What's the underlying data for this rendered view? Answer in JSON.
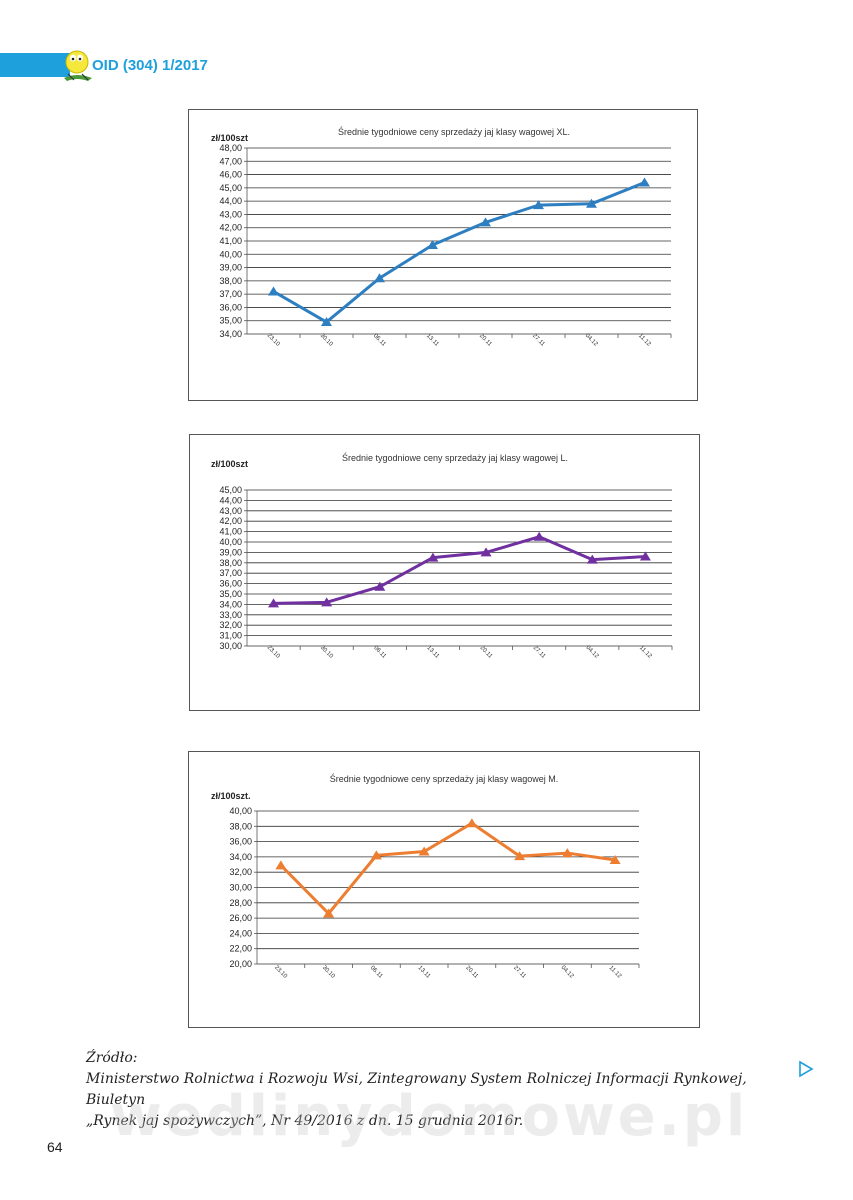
{
  "header": {
    "journal": "OID (304) 1/2017"
  },
  "chart_data": [
    {
      "type": "line",
      "title": "Średnie tygodniowe ceny sprzedaży jaj klasy wagowej XL.",
      "ylabel": "zł/100szt",
      "categories": [
        "23.10",
        "30.10",
        "06.11",
        "13.11",
        "20.11",
        "27.11",
        "04.12",
        "11.12"
      ],
      "values": [
        37.2,
        34.9,
        38.2,
        40.7,
        42.4,
        43.7,
        43.8,
        45.4
      ],
      "ylim": [
        34,
        48
      ],
      "ystep": 1,
      "color": "#2e7fc1",
      "grid": true,
      "legend": "none"
    },
    {
      "type": "line",
      "title": "Średnie tygodniowe ceny sprzedaży jaj klasy wagowej L.",
      "ylabel": "zł/100szt",
      "categories": [
        "23.10",
        "30.10",
        "06.11",
        "13.11",
        "20.11",
        "27.11",
        "04.12",
        "11.12"
      ],
      "values": [
        34.1,
        34.2,
        35.7,
        38.5,
        39.0,
        40.5,
        38.3,
        38.6
      ],
      "ylim": [
        30,
        45
      ],
      "ystep": 1,
      "color": "#7030a0",
      "grid": true,
      "legend": "none"
    },
    {
      "type": "line",
      "title": "Średnie tygodniowe ceny sprzedaży jaj klasy wagowej M.",
      "ylabel": "zł/100szt.",
      "categories": [
        "23.10",
        "30.10",
        "06.11",
        "13.11",
        "20.11",
        "27.11",
        "04.12",
        "11.12"
      ],
      "values": [
        32.9,
        26.6,
        34.2,
        34.7,
        38.4,
        34.1,
        34.5,
        33.6
      ],
      "ylim": [
        20,
        40
      ],
      "ystep": 2,
      "color": "#ed7d31",
      "grid": true,
      "legend": "none"
    }
  ],
  "source": {
    "label": "Źródło:",
    "line1": "Ministerstwo Rolnictwa i Rozwoju Wsi, Zintegrowany System Rolniczej Informacji Rynkowej, Biuletyn",
    "line2": "„Rynek jaj spożywczych”, Nr 49/2016 z dn. 15 grudnia 2016r."
  },
  "page_number": "64",
  "watermark": "wedlinydomowe.pl",
  "icons": {
    "logo": "chick-logo-icon",
    "next": "next-page-icon"
  }
}
